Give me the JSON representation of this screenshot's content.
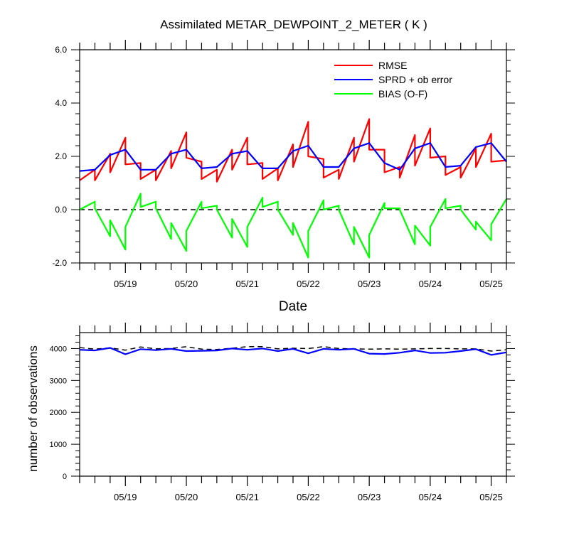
{
  "chart_data": [
    {
      "type": "line",
      "title": "Assimilated METAR_DEWPOINT_2_METER ( K )",
      "xlabel": "Date",
      "ylabel": "",
      "x_unit": "day of May",
      "xlim": [
        18.25,
        25.25
      ],
      "ylim": [
        -2.0,
        6.0
      ],
      "yticks": [
        {
          "value": -2.0,
          "label": "-2.0"
        },
        {
          "value": 0.0,
          "label": "0.0"
        },
        {
          "value": 2.0,
          "label": "2.0"
        },
        {
          "value": 4.0,
          "label": "4.0"
        },
        {
          "value": 6.0,
          "label": "6.0"
        }
      ],
      "xticks": [
        {
          "value": 19,
          "label": "05/19"
        },
        {
          "value": 20,
          "label": "05/20"
        },
        {
          "value": 21,
          "label": "05/21"
        },
        {
          "value": 22,
          "label": "05/22"
        },
        {
          "value": 23,
          "label": "05/23"
        },
        {
          "value": 24,
          "label": "05/24"
        },
        {
          "value": 25,
          "label": "05/25"
        }
      ],
      "zero_line": {
        "value": 0.0,
        "style": "dashed",
        "color": "#000000"
      },
      "legend_placement": "top-right",
      "series": [
        {
          "name": "RMSE",
          "color": "#ff0000",
          "x": [
            18.25,
            18.5,
            18.5,
            18.75,
            18.75,
            19.0,
            19.0,
            19.25,
            19.25,
            19.5,
            19.5,
            19.75,
            19.75,
            20.0,
            20.0,
            20.25,
            20.25,
            20.5,
            20.5,
            20.75,
            20.75,
            21.0,
            21.0,
            21.25,
            21.25,
            21.5,
            21.5,
            21.75,
            21.75,
            22.0,
            22.0,
            22.25,
            22.25,
            22.5,
            22.5,
            22.75,
            22.75,
            23.0,
            23.0,
            23.25,
            23.25,
            23.5,
            23.5,
            23.75,
            23.75,
            24.0,
            24.0,
            24.25,
            24.25,
            24.5,
            24.5,
            24.75,
            24.75,
            25.0,
            25.0,
            25.25
          ],
          "values": [
            1.1,
            1.5,
            1.1,
            2.1,
            1.4,
            2.7,
            1.7,
            1.75,
            1.15,
            1.5,
            1.1,
            2.2,
            1.55,
            2.9,
            1.95,
            1.8,
            1.15,
            1.5,
            1.05,
            2.25,
            1.5,
            2.7,
            1.7,
            1.75,
            1.15,
            1.55,
            1.1,
            2.45,
            1.6,
            3.3,
            2.0,
            1.9,
            1.2,
            1.5,
            1.15,
            2.7,
            1.8,
            3.4,
            2.25,
            2.25,
            1.4,
            1.6,
            1.2,
            2.8,
            1.65,
            3.05,
            1.95,
            2.0,
            1.3,
            1.6,
            1.2,
            2.3,
            1.6,
            2.85,
            1.8,
            1.85
          ]
        },
        {
          "name": "SPRD + ob error",
          "color": "#0000ff",
          "x": [
            18.25,
            18.5,
            18.75,
            19.0,
            19.25,
            19.5,
            19.75,
            20.0,
            20.25,
            20.5,
            20.75,
            21.0,
            21.25,
            21.5,
            21.75,
            22.0,
            22.25,
            22.5,
            22.75,
            23.0,
            23.25,
            23.5,
            23.75,
            24.0,
            24.25,
            24.5,
            24.75,
            25.0,
            25.25
          ],
          "values": [
            1.45,
            1.5,
            2.05,
            2.25,
            1.5,
            1.5,
            2.1,
            2.25,
            1.55,
            1.6,
            2.1,
            2.2,
            1.55,
            1.55,
            2.2,
            2.4,
            1.6,
            1.6,
            2.3,
            2.5,
            1.75,
            1.5,
            2.3,
            2.5,
            1.6,
            1.65,
            2.35,
            2.5,
            1.8
          ]
        },
        {
          "name": "BIAS (O-F)",
          "color": "#00ff00",
          "x": [
            18.25,
            18.5,
            18.5,
            18.75,
            18.75,
            19.0,
            19.0,
            19.25,
            19.25,
            19.5,
            19.5,
            19.75,
            19.75,
            20.0,
            20.0,
            20.25,
            20.25,
            20.5,
            20.5,
            20.75,
            20.75,
            21.0,
            21.0,
            21.25,
            21.25,
            21.5,
            21.5,
            21.75,
            21.75,
            22.0,
            22.0,
            22.25,
            22.25,
            22.5,
            22.5,
            22.75,
            22.75,
            23.0,
            23.0,
            23.25,
            23.25,
            23.5,
            23.5,
            23.75,
            23.75,
            24.0,
            24.0,
            24.25,
            24.25,
            24.5,
            24.5,
            24.75,
            24.75,
            25.0,
            25.0,
            25.25
          ],
          "values": [
            0.0,
            0.3,
            0.05,
            -1.0,
            -0.4,
            -1.5,
            -0.65,
            0.6,
            0.1,
            0.3,
            0.05,
            -1.1,
            -0.5,
            -1.55,
            -0.8,
            0.3,
            0.05,
            0.15,
            0.0,
            -1.05,
            -0.35,
            -1.4,
            -0.65,
            0.45,
            0.1,
            0.3,
            0.0,
            -0.95,
            -0.5,
            -1.8,
            -0.8,
            0.35,
            0.0,
            0.15,
            0.0,
            -1.3,
            -0.65,
            -1.8,
            -0.95,
            0.25,
            0.05,
            0.05,
            0.0,
            -1.3,
            -0.6,
            -1.35,
            -0.65,
            0.4,
            0.05,
            0.15,
            0.0,
            -0.75,
            -0.45,
            -1.15,
            -0.55,
            0.4
          ]
        }
      ]
    },
    {
      "type": "line",
      "title": "",
      "xlabel": "",
      "ylabel": "number of observations",
      "x_unit": "day of May",
      "xlim": [
        18.25,
        25.25
      ],
      "ylim": [
        0,
        4500
      ],
      "yticks": [
        {
          "value": 0,
          "label": "0"
        },
        {
          "value": 1000,
          "label": "1000"
        },
        {
          "value": 2000,
          "label": "2000"
        },
        {
          "value": 3000,
          "label": "3000"
        },
        {
          "value": 4000,
          "label": "4000"
        }
      ],
      "xticks": [
        {
          "value": 19,
          "label": "05/19"
        },
        {
          "value": 20,
          "label": "05/20"
        },
        {
          "value": 21,
          "label": "05/21"
        },
        {
          "value": 22,
          "label": "05/22"
        },
        {
          "value": 23,
          "label": "05/23"
        },
        {
          "value": 24,
          "label": "05/24"
        },
        {
          "value": 25,
          "label": "05/25"
        }
      ],
      "series": [
        {
          "name": "",
          "style": "dashed",
          "color": "#000000",
          "x": [
            18.25,
            18.5,
            18.75,
            19.0,
            19.25,
            19.5,
            19.75,
            20.0,
            20.25,
            20.5,
            20.75,
            21.0,
            21.25,
            21.5,
            21.75,
            22.0,
            22.25,
            22.5,
            22.75,
            23.0,
            23.25,
            23.5,
            23.75,
            24.0,
            24.25,
            24.5,
            24.75,
            25.0,
            25.25
          ],
          "values": [
            4030,
            3980,
            4020,
            3950,
            4050,
            3990,
            4000,
            4060,
            3980,
            3970,
            4010,
            4060,
            4060,
            3990,
            4010,
            4000,
            4060,
            4000,
            3990,
            3980,
            3990,
            3980,
            3990,
            4000,
            4000,
            3990,
            3990,
            3920,
            3960
          ]
        },
        {
          "name": "",
          "style": "solid",
          "color": "#0000ff",
          "x": [
            18.25,
            18.5,
            18.75,
            19.0,
            19.25,
            19.5,
            19.75,
            20.0,
            20.25,
            20.5,
            20.75,
            21.0,
            21.25,
            21.5,
            21.75,
            22.0,
            22.25,
            22.5,
            22.75,
            23.0,
            23.25,
            23.5,
            23.75,
            24.0,
            24.25,
            24.5,
            24.75,
            25.0,
            25.25
          ],
          "values": [
            3960,
            3940,
            4020,
            3820,
            3980,
            3950,
            3990,
            3920,
            3930,
            3940,
            4000,
            3960,
            4000,
            3920,
            3990,
            3850,
            3990,
            3960,
            3990,
            3840,
            3830,
            3870,
            3940,
            3860,
            3870,
            3920,
            3980,
            3800,
            3880
          ]
        }
      ]
    }
  ]
}
